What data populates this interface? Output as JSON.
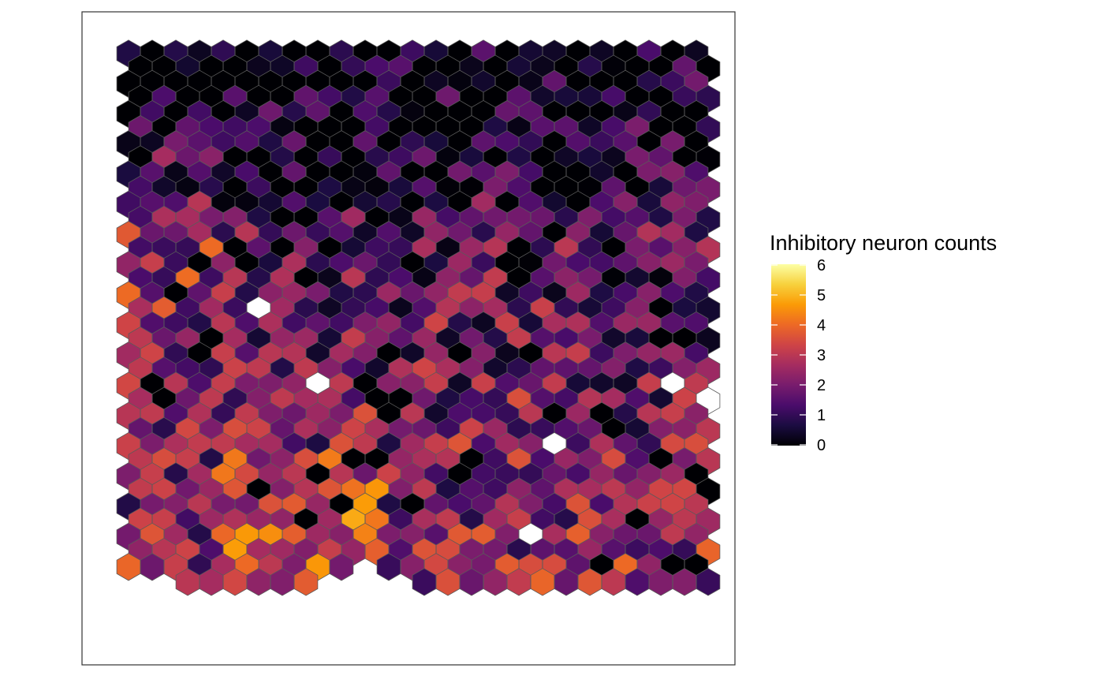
{
  "chart_data": {
    "type": "heatmap",
    "layout": "hexagonal spatial grid",
    "title": "",
    "xlabel": "",
    "ylabel": "",
    "value_range": [
      0,
      6
    ],
    "colormap": [
      "#000004",
      "#1b0c41",
      "#4a0c6b",
      "#781c6d",
      "#a52c60",
      "#cf4446",
      "#ed6925",
      "#fb9b06",
      "#f7d13d",
      "#fcffa4"
    ],
    "missing_color": "#ffffff",
    "grid_rows": 36,
    "grid_cols": 37,
    "legend": {
      "title": "Inhibitory neuron counts",
      "ticks": [
        "0",
        "1",
        "2",
        "3",
        "4",
        "5",
        "6"
      ],
      "placement": "right"
    }
  }
}
